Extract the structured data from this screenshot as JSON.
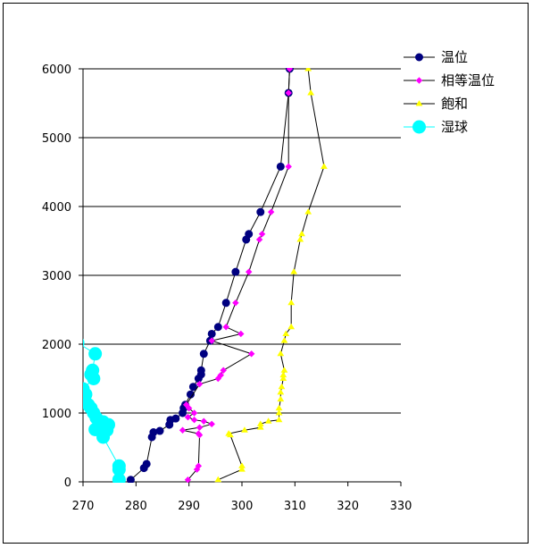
{
  "chart_data": {
    "type": "scatter",
    "xlim": [
      270,
      330
    ],
    "ylim": [
      0,
      6000
    ],
    "x_ticks": [
      "270",
      "280",
      "290",
      "300",
      "310",
      "320",
      "330"
    ],
    "y_ticks": [
      "0",
      "1000",
      "2000",
      "3000",
      "4000",
      "5000",
      "6000"
    ],
    "grid": "horizontal",
    "legend": "right",
    "series": [
      {
        "name": "温位",
        "color": "#000080",
        "marker": "circle",
        "points": [
          [
            279.0,
            30
          ],
          [
            281.5,
            200
          ],
          [
            282.0,
            260
          ],
          [
            283.0,
            650
          ],
          [
            283.3,
            720
          ],
          [
            284.5,
            740
          ],
          [
            286.3,
            830
          ],
          [
            286.5,
            900
          ],
          [
            287.5,
            920
          ],
          [
            288.8,
            1000
          ],
          [
            289.0,
            1070
          ],
          [
            289.3,
            1120
          ],
          [
            290.3,
            1270
          ],
          [
            290.8,
            1380
          ],
          [
            291.8,
            1500
          ],
          [
            292.3,
            1560
          ],
          [
            292.3,
            1620
          ],
          [
            292.8,
            1860
          ],
          [
            294.0,
            2050
          ],
          [
            294.3,
            2150
          ],
          [
            295.5,
            2250
          ],
          [
            297.0,
            2600
          ],
          [
            298.8,
            3050
          ],
          [
            300.8,
            3520
          ],
          [
            301.3,
            3600
          ],
          [
            303.5,
            3920
          ],
          [
            307.3,
            4580
          ],
          [
            308.8,
            5650
          ],
          [
            309.0,
            6000
          ]
        ]
      },
      {
        "name": "相等温位",
        "color": "#ff00ff",
        "marker": "diamond",
        "points": [
          [
            289.8,
            30
          ],
          [
            291.5,
            180
          ],
          [
            291.8,
            230
          ],
          [
            292.0,
            680
          ],
          [
            291.8,
            700
          ],
          [
            288.8,
            750
          ],
          [
            292.0,
            790
          ],
          [
            294.3,
            840
          ],
          [
            292.8,
            880
          ],
          [
            291.0,
            900
          ],
          [
            289.8,
            940
          ],
          [
            291.0,
            1000
          ],
          [
            290.0,
            1070
          ],
          [
            289.5,
            1120
          ],
          [
            292.0,
            1420
          ],
          [
            295.5,
            1500
          ],
          [
            296.0,
            1550
          ],
          [
            296.5,
            1620
          ],
          [
            301.8,
            1860
          ],
          [
            294.3,
            2050
          ],
          [
            299.8,
            2150
          ],
          [
            297.0,
            2250
          ],
          [
            298.8,
            2600
          ],
          [
            301.3,
            3050
          ],
          [
            303.3,
            3520
          ],
          [
            303.8,
            3600
          ],
          [
            305.5,
            3920
          ],
          [
            308.8,
            4580
          ],
          [
            308.8,
            5650
          ],
          [
            309.0,
            6000
          ]
        ]
      },
      {
        "name": "飽和",
        "color": "#ffff00",
        "marker": "triangle",
        "points": [
          [
            295.5,
            30
          ],
          [
            300.0,
            180
          ],
          [
            300.0,
            230
          ],
          [
            297.8,
            680
          ],
          [
            297.5,
            700
          ],
          [
            300.5,
            750
          ],
          [
            303.5,
            790
          ],
          [
            303.5,
            840
          ],
          [
            305.0,
            880
          ],
          [
            307.0,
            900
          ],
          [
            307.0,
            1000
          ],
          [
            307.0,
            1070
          ],
          [
            307.3,
            1200
          ],
          [
            307.3,
            1300
          ],
          [
            307.5,
            1380
          ],
          [
            307.8,
            1500
          ],
          [
            307.8,
            1550
          ],
          [
            308.0,
            1620
          ],
          [
            307.3,
            1860
          ],
          [
            308.0,
            2050
          ],
          [
            308.3,
            2150
          ],
          [
            309.3,
            2250
          ],
          [
            309.3,
            2600
          ],
          [
            309.8,
            3050
          ],
          [
            311.0,
            3520
          ],
          [
            311.3,
            3600
          ],
          [
            312.5,
            3920
          ],
          [
            315.5,
            4580
          ],
          [
            313.0,
            5650
          ],
          [
            312.5,
            6000
          ]
        ]
      },
      {
        "name": "湿球",
        "color": "#00ffff",
        "marker": "circle",
        "points": [
          [
            276.8,
            30
          ],
          [
            276.8,
            180
          ],
          [
            276.8,
            230
          ],
          [
            273.8,
            650
          ],
          [
            274.5,
            750
          ],
          [
            272.3,
            760
          ],
          [
            274.8,
            830
          ],
          [
            273.8,
            870
          ],
          [
            272.5,
            930
          ],
          [
            272.0,
            1000
          ],
          [
            271.5,
            1070
          ],
          [
            271.0,
            1120
          ],
          [
            270.5,
            1270
          ],
          [
            270.0,
            1350
          ],
          [
            272.0,
            1500
          ],
          [
            271.5,
            1560
          ],
          [
            271.8,
            1620
          ],
          [
            272.3,
            1860
          ],
          [
            269.0,
            2020
          ]
        ]
      }
    ]
  }
}
